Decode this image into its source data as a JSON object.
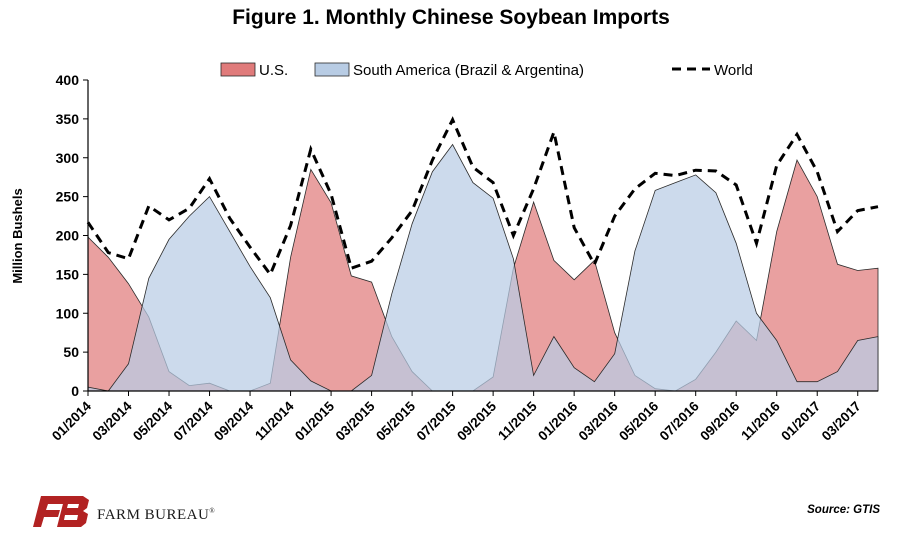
{
  "chart_data": {
    "type": "area",
    "title": "Figure 1. Monthly Chinese Soybean Imports",
    "ylabel": "Million Bushels",
    "xlabel": "",
    "ylim": [
      0,
      400
    ],
    "yticks": [
      0,
      50,
      100,
      150,
      200,
      250,
      300,
      350,
      400
    ],
    "grid": false,
    "legend_position": "top",
    "categories": [
      "01/2014",
      "02/2014",
      "03/2014",
      "04/2014",
      "05/2014",
      "06/2014",
      "07/2014",
      "08/2014",
      "09/2014",
      "10/2014",
      "11/2014",
      "12/2014",
      "01/2015",
      "02/2015",
      "03/2015",
      "04/2015",
      "05/2015",
      "06/2015",
      "07/2015",
      "08/2015",
      "09/2015",
      "10/2015",
      "11/2015",
      "12/2015",
      "01/2016",
      "02/2016",
      "03/2016",
      "04/2016",
      "05/2016",
      "06/2016",
      "07/2016",
      "08/2016",
      "09/2016",
      "10/2016",
      "11/2016",
      "12/2016",
      "01/2017",
      "02/2017",
      "03/2017",
      "04/2017"
    ],
    "xtick_labels": [
      "01/2014",
      "03/2014",
      "05/2014",
      "07/2014",
      "09/2014",
      "11/2014",
      "01/2015",
      "03/2015",
      "05/2015",
      "07/2015",
      "09/2015",
      "11/2015",
      "01/2016",
      "03/2016",
      "05/2016",
      "07/2016",
      "09/2016",
      "11/2016",
      "01/2017",
      "03/2017"
    ],
    "series": [
      {
        "name": "U.S.",
        "type": "area",
        "color": "#e07b7b",
        "values": [
          198,
          172,
          138,
          95,
          25,
          7,
          10,
          0,
          0,
          10,
          172,
          285,
          242,
          148,
          140,
          70,
          25,
          0,
          0,
          0,
          18,
          158,
          243,
          168,
          143,
          168,
          75,
          20,
          3,
          0,
          15,
          50,
          90,
          65,
          205,
          297,
          250,
          163,
          155,
          158
        ]
      },
      {
        "name": "South America (Brazil & Argentina)",
        "type": "area",
        "color": "#b8cce4",
        "values": [
          5,
          0,
          35,
          145,
          195,
          225,
          250,
          205,
          160,
          120,
          40,
          13,
          0,
          0,
          20,
          125,
          215,
          282,
          317,
          268,
          248,
          170,
          20,
          70,
          30,
          12,
          48,
          180,
          258,
          268,
          278,
          255,
          190,
          100,
          65,
          12,
          12,
          25,
          65,
          70
        ]
      },
      {
        "name": "World",
        "type": "line",
        "color": "#000000",
        "values": [
          217,
          178,
          170,
          238,
          220,
          235,
          273,
          222,
          185,
          150,
          213,
          311,
          253,
          158,
          167,
          197,
          232,
          297,
          349,
          288,
          268,
          200,
          260,
          333,
          210,
          163,
          225,
          260,
          280,
          277,
          284,
          283,
          265,
          190,
          290,
          330,
          282,
          205,
          232,
          237
        ]
      }
    ]
  },
  "source": "Source: GTIS",
  "logo": {
    "text": "FARM BUREAU",
    "mark": "®",
    "color": "#b22222"
  }
}
